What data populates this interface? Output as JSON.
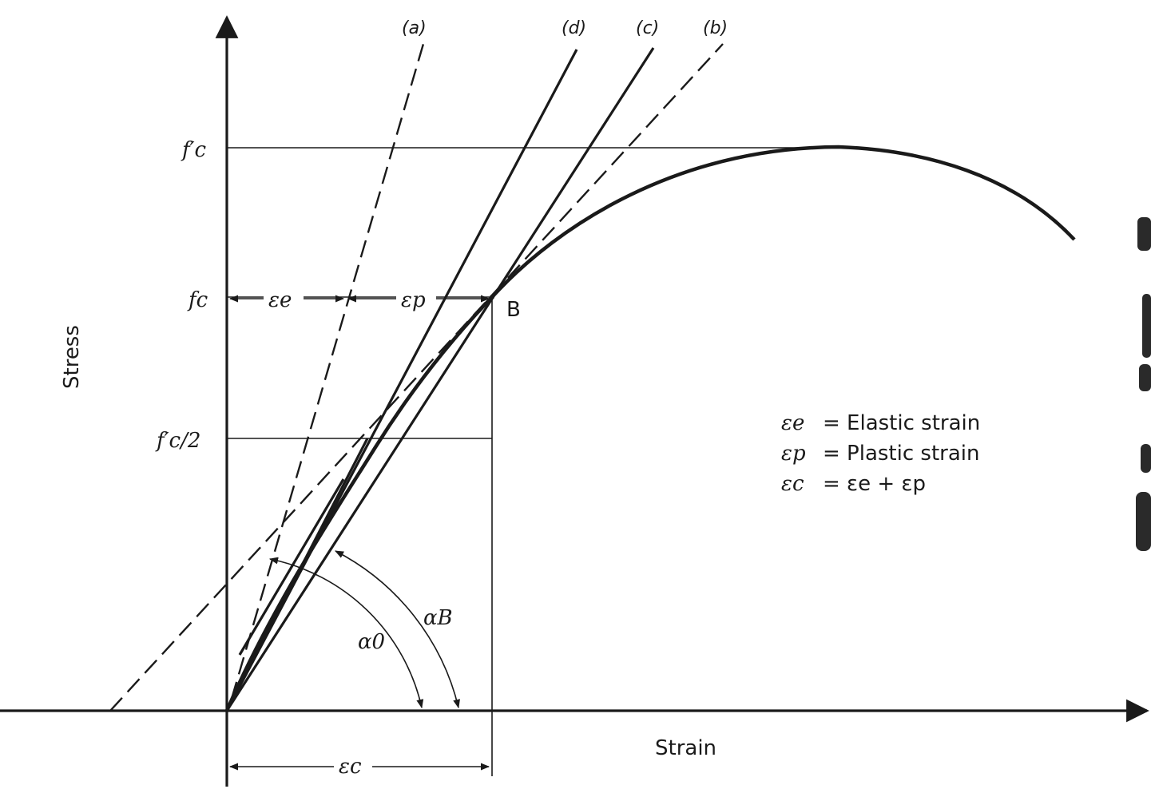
{
  "axes": {
    "y_label": "Stress",
    "x_label": "Strain"
  },
  "y_ticks": {
    "fc_prime": "f′c",
    "fc": "fc",
    "fc_prime_half": "f′c/2"
  },
  "curve_labels": {
    "a": "(a)",
    "b": "(b)",
    "c": "(c)",
    "d": "(d)"
  },
  "point_label": "B",
  "strain_marks": {
    "elastic": "εe",
    "plastic": "εp",
    "total": "εc"
  },
  "angles": {
    "alpha_0": "α0",
    "alpha_B": "αB"
  },
  "legend": [
    {
      "symbol": "εe",
      "text": "= Elastic strain"
    },
    {
      "symbol": "εp",
      "text": "= Plastic strain"
    },
    {
      "symbol": "εc",
      "text": "= εe + εp"
    }
  ],
  "colors": {
    "ink": "#1a1a1a",
    "background": "#ffffff"
  }
}
